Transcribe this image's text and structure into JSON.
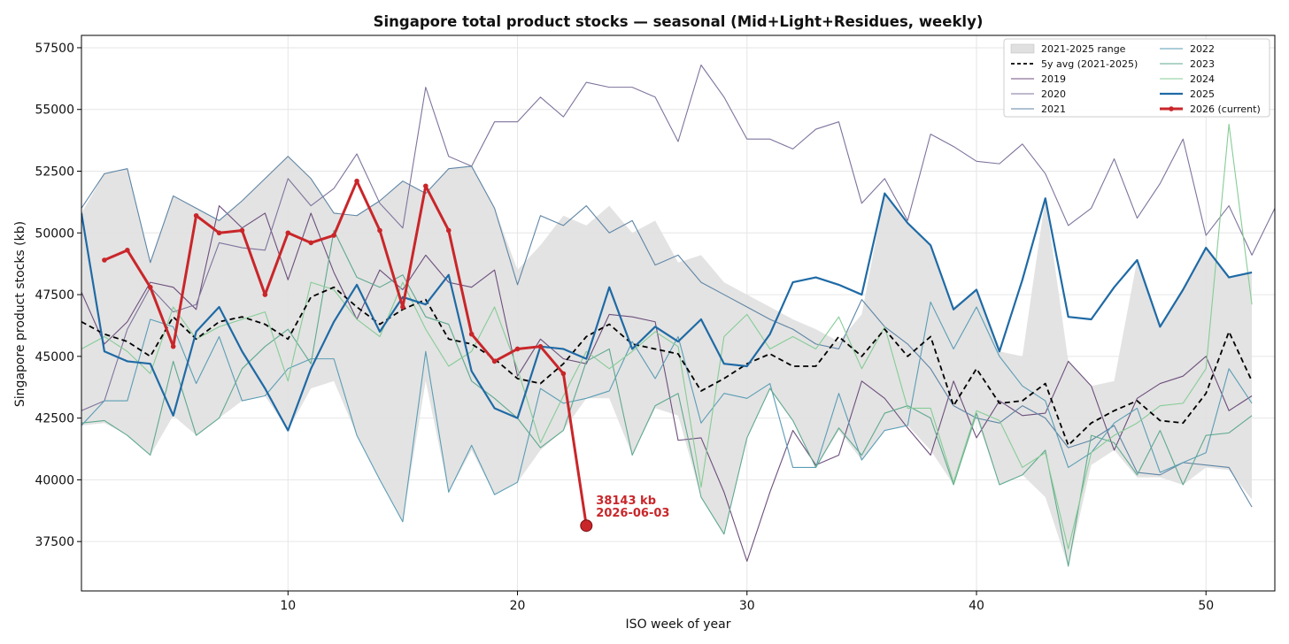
{
  "chart_data": {
    "type": "line",
    "title": "Singapore total product stocks — seasonal  (Mid+Light+Residues, weekly)",
    "xlabel": "ISO week of year",
    "ylabel": "Singapore product stocks (kb)",
    "xlim": [
      1,
      53
    ],
    "ylim": [
      35500,
      58000
    ],
    "xticks": [
      10,
      20,
      30,
      40,
      50
    ],
    "yticks": [
      37500,
      40000,
      42500,
      45000,
      47500,
      50000,
      52500,
      55000,
      57500
    ],
    "grid": true,
    "legend_position": "top-right",
    "legend_columns": 2,
    "band": {
      "name": "2021-2025 range",
      "color": "#e0e0e0",
      "x": [
        1,
        2,
        3,
        4,
        5,
        6,
        7,
        8,
        9,
        10,
        11,
        12,
        13,
        14,
        15,
        16,
        17,
        18,
        19,
        20,
        21,
        22,
        23,
        24,
        25,
        26,
        27,
        28,
        29,
        30,
        31,
        32,
        33,
        34,
        35,
        36,
        37,
        38,
        39,
        40,
        41,
        42,
        43,
        44,
        45,
        46,
        47,
        48,
        49,
        50,
        51,
        52
      ],
      "lower": [
        42200,
        42300,
        41800,
        41000,
        42600,
        41800,
        42500,
        43200,
        43400,
        42000,
        43700,
        44000,
        41800,
        40000,
        38300,
        44000,
        39500,
        41200,
        39400,
        39900,
        41200,
        42000,
        43300,
        43300,
        41000,
        42900,
        42600,
        39300,
        37800,
        41700,
        43700,
        42400,
        40500,
        42000,
        40800,
        42000,
        42200,
        41200,
        39800,
        42500,
        39800,
        40200,
        39300,
        36500,
        40600,
        41200,
        40100,
        40100,
        39800,
        40500,
        40400,
        39200
      ],
      "upper": [
        50800,
        52400,
        52600,
        48800,
        51500,
        51000,
        50500,
        51300,
        52200,
        53100,
        52200,
        50800,
        50700,
        51300,
        52100,
        51600,
        52600,
        52700,
        51000,
        48500,
        49500,
        50700,
        50300,
        51100,
        50000,
        50500,
        48800,
        49100,
        48000,
        47500,
        47000,
        46500,
        46100,
        45600,
        46700,
        51600,
        50400,
        49500,
        47000,
        47700,
        45200,
        45000,
        51400,
        44800,
        43800,
        44000,
        48900,
        46200,
        47800,
        49400,
        48200,
        48400
      ]
    },
    "series": [
      {
        "name": "5y avg (2021-2025)",
        "color": "#000000",
        "width": 1.8,
        "dash": "6,4",
        "x": [
          1,
          2,
          3,
          4,
          5,
          6,
          7,
          8,
          9,
          10,
          11,
          12,
          13,
          14,
          15,
          16,
          17,
          18,
          19,
          20,
          21,
          22,
          23,
          24,
          25,
          26,
          27,
          28,
          29,
          30,
          31,
          32,
          33,
          34,
          35,
          36,
          37,
          38,
          39,
          40,
          41,
          42,
          43,
          44,
          45,
          46,
          47,
          48,
          49,
          50,
          51,
          52
        ],
        "values": [
          46400,
          45900,
          45600,
          45000,
          46600,
          45700,
          46400,
          46600,
          46300,
          45700,
          47400,
          47800,
          47000,
          46300,
          46900,
          47300,
          45700,
          45500,
          44900,
          44100,
          43900,
          44700,
          45800,
          46300,
          45500,
          45300,
          45100,
          43600,
          44100,
          44700,
          45100,
          44600,
          44600,
          45800,
          45000,
          46100,
          45000,
          45800,
          43000,
          44500,
          43100,
          43200,
          43900,
          41400,
          42300,
          42800,
          43200,
          42400,
          42300,
          43500,
          46000,
          44000
        ]
      },
      {
        "name": "2019",
        "color": "#6d4f7c",
        "width": 1.1,
        "x": [
          1,
          2,
          3,
          4,
          5,
          6,
          7,
          8,
          9,
          10,
          11,
          12,
          13,
          14,
          15,
          16,
          17,
          18,
          19,
          20,
          21,
          22,
          23,
          24,
          25,
          26,
          27,
          28,
          29,
          30,
          31,
          32,
          33,
          34,
          35,
          36,
          37,
          38,
          39,
          40,
          41,
          42,
          43,
          44,
          45,
          46,
          47,
          48,
          49,
          50,
          51,
          52
        ],
        "values": [
          47600,
          45500,
          46400,
          48000,
          47800,
          46900,
          51100,
          50200,
          50800,
          48100,
          50800,
          48400,
          46500,
          48500,
          47700,
          49100,
          48000,
          47800,
          48500,
          44200,
          45700,
          44900,
          44700,
          46700,
          46600,
          46400,
          41600,
          41700,
          39500,
          36700,
          39500,
          42000,
          40600,
          41000,
          44000,
          43300,
          42100,
          41000,
          44000,
          41700,
          43200,
          42600,
          42700,
          44800,
          43800,
          41200,
          43300,
          43900,
          44200,
          45000,
          42800,
          43400
        ]
      },
      {
        "name": "2020",
        "color": "#7f739c",
        "width": 1.1,
        "x": [
          1,
          2,
          3,
          4,
          5,
          6,
          7,
          8,
          9,
          10,
          11,
          12,
          13,
          14,
          15,
          16,
          17,
          18,
          19,
          20,
          21,
          22,
          23,
          24,
          25,
          26,
          27,
          28,
          29,
          30,
          31,
          32,
          33,
          34,
          35,
          36,
          37,
          38,
          39,
          40,
          41,
          42,
          43,
          44,
          45,
          46,
          47,
          48,
          49,
          50,
          51,
          52,
          53
        ],
        "values": [
          42800,
          43200,
          46100,
          47800,
          46800,
          47100,
          49600,
          49400,
          49300,
          52200,
          51100,
          51800,
          53200,
          51200,
          50200,
          55900,
          53100,
          52700,
          54500,
          54500,
          55500,
          54700,
          56100,
          55900,
          55900,
          55500,
          53700,
          56800,
          55500,
          53800,
          53800,
          53400,
          54200,
          54500,
          51200,
          52200,
          50500,
          54000,
          53500,
          52900,
          52800,
          53600,
          52400,
          50300,
          51000,
          53000,
          50600,
          52000,
          53800,
          49900,
          51100,
          49100,
          51000
        ]
      },
      {
        "name": "2021",
        "color": "#5f85a5",
        "width": 1.1,
        "x": [
          1,
          2,
          3,
          4,
          5,
          6,
          7,
          8,
          9,
          10,
          11,
          12,
          13,
          14,
          15,
          16,
          17,
          18,
          19,
          20,
          21,
          22,
          23,
          24,
          25,
          26,
          27,
          28,
          29,
          30,
          31,
          32,
          33,
          34,
          35,
          36,
          37,
          38,
          39,
          40,
          41,
          42,
          43,
          44,
          45,
          46,
          47,
          48,
          49,
          50,
          51,
          52
        ],
        "values": [
          51000,
          52400,
          52600,
          48800,
          51500,
          51000,
          50500,
          51300,
          52200,
          53100,
          52200,
          50800,
          50700,
          51300,
          52100,
          51600,
          52600,
          52700,
          51000,
          47900,
          50700,
          50300,
          51100,
          50000,
          50500,
          48700,
          49100,
          48000,
          47500,
          47000,
          46500,
          46100,
          45500,
          45300,
          47300,
          46200,
          45500,
          44500,
          43000,
          42500,
          42300,
          43000,
          42500,
          41300,
          41600,
          42200,
          40300,
          40200,
          40700,
          40600,
          40500,
          38900
        ]
      },
      {
        "name": "2022",
        "color": "#5b9db5",
        "width": 1.1,
        "x": [
          1,
          2,
          3,
          4,
          5,
          6,
          7,
          8,
          9,
          10,
          11,
          12,
          13,
          14,
          15,
          16,
          17,
          18,
          19,
          20,
          21,
          22,
          23,
          24,
          25,
          26,
          27,
          28,
          29,
          30,
          31,
          32,
          33,
          34,
          35,
          36,
          37,
          38,
          39,
          40,
          41,
          42,
          43,
          44,
          45,
          46,
          47,
          48,
          49,
          50,
          51,
          52
        ],
        "values": [
          42200,
          43200,
          43200,
          46500,
          46200,
          43900,
          45800,
          43200,
          43400,
          44500,
          44900,
          44900,
          41800,
          40000,
          38300,
          45200,
          39500,
          41400,
          39400,
          39900,
          43700,
          43100,
          43300,
          43600,
          45600,
          44100,
          45800,
          42300,
          43500,
          43300,
          43900,
          40500,
          40500,
          43500,
          40800,
          42000,
          42200,
          47200,
          45300,
          47000,
          45000,
          43800,
          43200,
          40500,
          41100,
          42300,
          42900,
          40300,
          40700,
          41100,
          44500,
          43100
        ]
      },
      {
        "name": "2023",
        "color": "#5fa98e",
        "width": 1.1,
        "x": [
          1,
          2,
          3,
          4,
          5,
          6,
          7,
          8,
          9,
          10,
          11,
          12,
          13,
          14,
          15,
          16,
          17,
          18,
          19,
          20,
          21,
          22,
          23,
          24,
          25,
          26,
          27,
          28,
          29,
          30,
          31,
          32,
          33,
          34,
          35,
          36,
          37,
          38,
          39,
          40,
          41,
          42,
          43,
          44,
          45,
          46,
          47,
          48,
          49,
          50,
          51,
          52
        ],
        "values": [
          42300,
          42400,
          41800,
          41000,
          44800,
          41800,
          42500,
          44500,
          45400,
          46100,
          44700,
          50100,
          48200,
          47800,
          48300,
          46600,
          46300,
          44000,
          43300,
          42500,
          41300,
          42000,
          44800,
          45300,
          41000,
          43000,
          43500,
          39300,
          37800,
          41700,
          43700,
          42400,
          40500,
          42100,
          41000,
          42700,
          43000,
          42500,
          39800,
          42700,
          39800,
          40200,
          41200,
          36500,
          41800,
          41500,
          40200,
          42000,
          39800,
          41800,
          41900,
          42600
        ]
      },
      {
        "name": "2024",
        "color": "#86cc96",
        "width": 1.1,
        "x": [
          1,
          2,
          3,
          4,
          5,
          6,
          7,
          8,
          9,
          10,
          11,
          12,
          13,
          14,
          15,
          16,
          17,
          18,
          19,
          20,
          21,
          22,
          23,
          24,
          25,
          26,
          27,
          28,
          29,
          30,
          31,
          32,
          33,
          34,
          35,
          36,
          37,
          38,
          39,
          40,
          41,
          42,
          43,
          44,
          45,
          46,
          47,
          48,
          49,
          50,
          51,
          52
        ],
        "values": [
          45300,
          45800,
          45200,
          44300,
          47000,
          45700,
          46200,
          46500,
          46800,
          44000,
          48000,
          47700,
          46500,
          45800,
          48000,
          46100,
          44600,
          45200,
          47000,
          44500,
          41500,
          43400,
          45200,
          44500,
          45200,
          46000,
          45400,
          39700,
          45800,
          46700,
          45300,
          45800,
          45300,
          46600,
          44500,
          46200,
          42900,
          42900,
          39900,
          42800,
          42400,
          40500,
          41100,
          37200,
          41100,
          41800,
          42300,
          43000,
          43100,
          44500,
          54400,
          47100
        ]
      },
      {
        "name": "2025",
        "color": "#1f6aa5",
        "width": 2.2,
        "x": [
          1,
          2,
          3,
          4,
          5,
          6,
          7,
          8,
          9,
          10,
          11,
          12,
          13,
          14,
          15,
          16,
          17,
          18,
          19,
          20,
          21,
          22,
          23,
          24,
          25,
          26,
          27,
          28,
          29,
          30,
          31,
          32,
          33,
          34,
          35,
          36,
          37,
          38,
          39,
          40,
          41,
          42,
          43,
          44,
          45,
          46,
          47,
          48,
          49,
          50,
          51,
          52
        ],
        "values": [
          50800,
          45200,
          44800,
          44700,
          42600,
          46000,
          47000,
          45200,
          43700,
          42000,
          44500,
          46400,
          47900,
          46000,
          47400,
          47100,
          48300,
          44400,
          42900,
          42500,
          45400,
          45300,
          44900,
          47800,
          45300,
          46200,
          45600,
          46500,
          44700,
          44600,
          45900,
          48000,
          48200,
          47900,
          47500,
          51600,
          50400,
          49500,
          46900,
          47700,
          45200,
          48100,
          51400,
          46600,
          46500,
          47800,
          48900,
          46200,
          47700,
          49400,
          48200,
          48400
        ]
      },
      {
        "name": "2026 (current)",
        "color": "#c9262a",
        "width": 3,
        "markers": true,
        "x": [
          2,
          3,
          4,
          5,
          6,
          7,
          8,
          9,
          10,
          11,
          12,
          13,
          14,
          15,
          16,
          17,
          18,
          19,
          20,
          21,
          22,
          23
        ],
        "values": [
          48900,
          49300,
          47800,
          45400,
          50700,
          50000,
          50100,
          47500,
          50000,
          49600,
          49900,
          52100,
          50100,
          47000,
          51900,
          50100,
          45900,
          44800,
          45300,
          45400,
          44300,
          38143
        ]
      }
    ],
    "annotation": {
      "text_value": "38143 kb",
      "text_date": "2026-06-03",
      "x": 23,
      "y": 38143
    }
  }
}
